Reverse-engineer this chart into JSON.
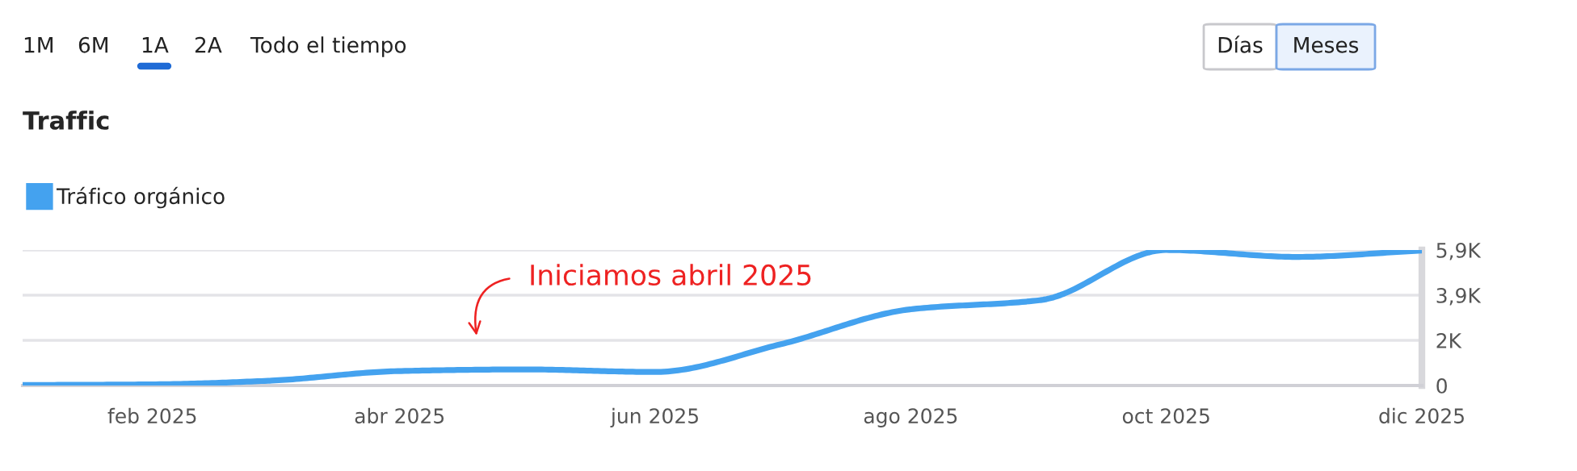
{
  "chart_data": {
    "type": "line",
    "title": "Traffic",
    "x": [
      "2025-01-01",
      "2025-02-01",
      "2025-03-01",
      "2025-04-01",
      "2025-05-01",
      "2025-06-01",
      "2025-07-01",
      "2025-08-01",
      "2025-09-01",
      "2025-10-01",
      "2025-11-01",
      "2025-12-01"
    ],
    "series": [
      {
        "name": "Tráfico orgánico",
        "color": "#44a2ef",
        "values": [
          20,
          50,
          210,
          630,
          700,
          590,
          1800,
          3320,
          3720,
          5900,
          5600,
          5880
        ]
      }
    ],
    "xlim": [
      "2025-01-01",
      "2025-12-01"
    ],
    "xticks": [
      {
        "value": "2025-02-01",
        "label": "feb 2025"
      },
      {
        "value": "2025-04-01",
        "label": "abr 2025"
      },
      {
        "value": "2025-06-01",
        "label": "jun 2025"
      },
      {
        "value": "2025-08-01",
        "label": "ago 2025"
      },
      {
        "value": "2025-10-01",
        "label": "oct 2025"
      },
      {
        "value": "2025-12-01",
        "label": "dic 2025"
      }
    ],
    "ylim": [
      0,
      5900
    ],
    "yticks": [
      0,
      {
        "value": 1967,
        "label": "2K"
      },
      {
        "value": 3933,
        "label": "3,9K"
      },
      {
        "value": 5900,
        "label": "5,9K"
      }
    ],
    "grid": "y",
    "legend": "top left",
    "marker": "none",
    "line_style": "solid",
    "annotations": [
      "1M",
      "6M",
      "1A",
      "2A",
      "Todo el tiempo",
      "Días",
      "Meses",
      "Iniciamos abril 2025"
    ]
  }
}
